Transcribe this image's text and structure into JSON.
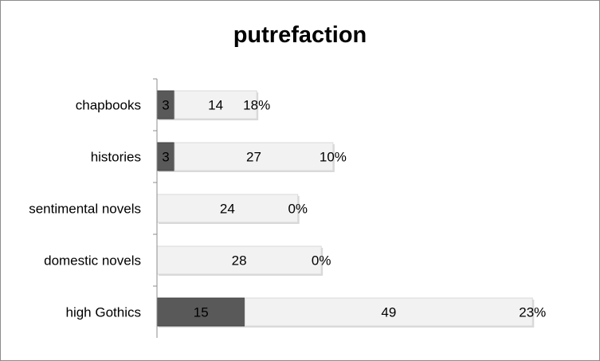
{
  "chart_data": {
    "type": "bar",
    "orientation": "horizontal",
    "stacked": true,
    "title": "putrefaction",
    "categories": [
      "chapbooks",
      "histories",
      "sentimental novels",
      "domestic novels",
      "high Gothics"
    ],
    "series": [
      {
        "values": [
          3,
          3,
          0,
          0,
          15
        ],
        "color": "#595959"
      },
      {
        "values": [
          14,
          27,
          24,
          28,
          49
        ],
        "color": "#f2f2f2"
      }
    ],
    "percent_labels": [
      "18%",
      "10%",
      "0%",
      "0%",
      "23%"
    ],
    "xlim": [
      0,
      66
    ],
    "grid": false,
    "legend": "none"
  }
}
